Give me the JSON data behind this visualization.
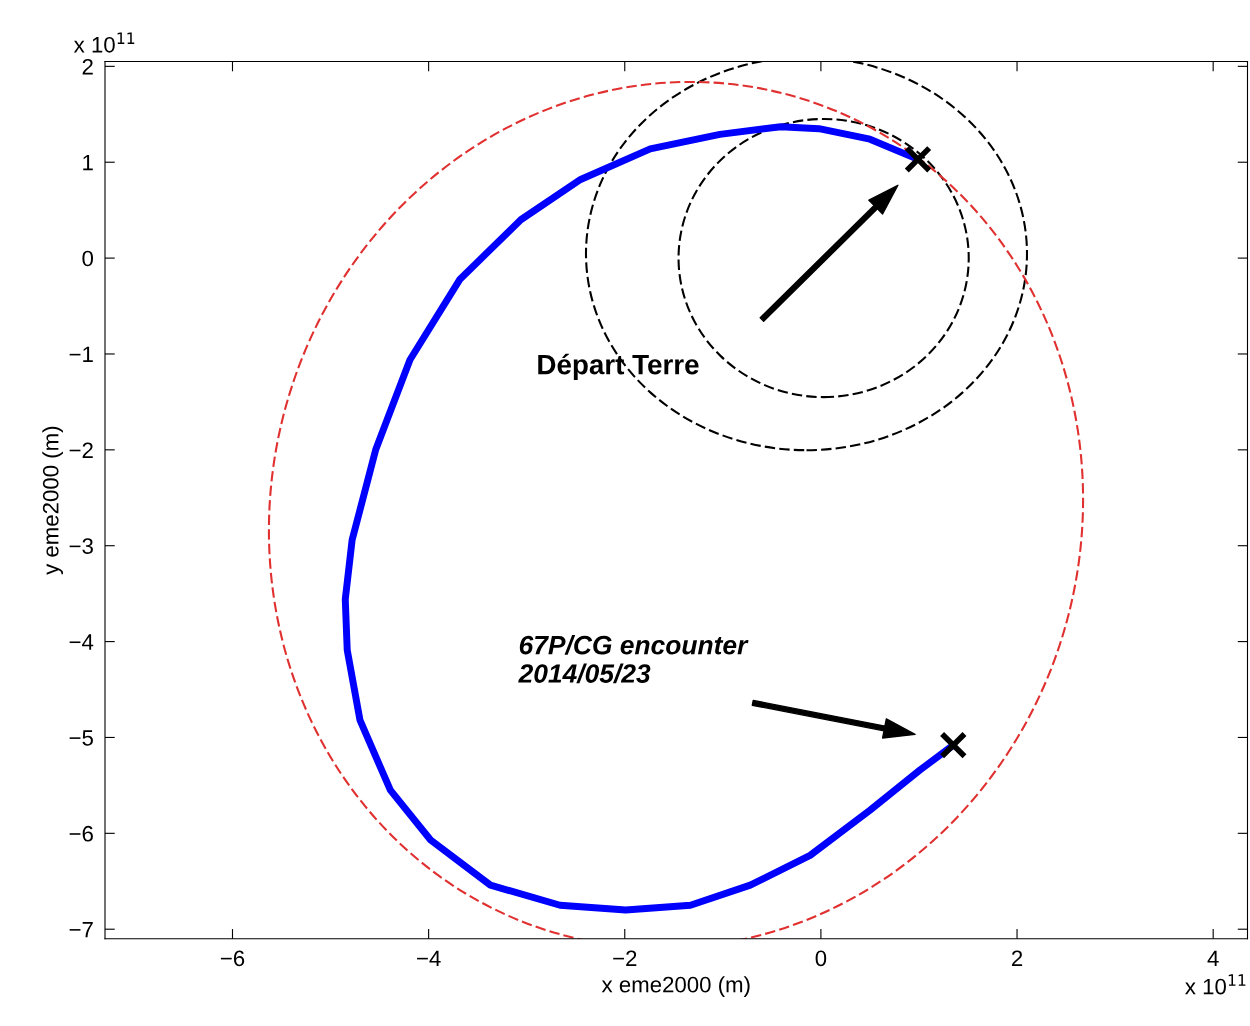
{
  "chart_data": {
    "type": "line",
    "xlabel": "x eme2000 (m)",
    "ylabel": "y eme2000 (m)",
    "xlim": [
      -7.3,
      4.35
    ],
    "ylim": [
      -7.1,
      2.05
    ],
    "xticks": [
      -6,
      -4,
      -2,
      0,
      2,
      4
    ],
    "yticks": [
      -7,
      -6,
      -5,
      -4,
      -3,
      -2,
      -1,
      0,
      1,
      2
    ],
    "grid": false,
    "series": [
      {
        "line_style": "solid",
        "color": "#0000ff",
        "x": [
          0.99,
          0.5,
          -0.02,
          -0.41,
          -1.03,
          -1.74,
          -2.45,
          -3.06,
          -3.68,
          -4.19,
          -4.54,
          -4.78,
          -4.85,
          -4.83,
          -4.7,
          -4.39,
          -3.98,
          -3.37,
          -2.66,
          -1.99,
          -1.33,
          -0.72,
          -0.11,
          0.5,
          1.01,
          1.35
        ],
        "values": [
          1.03,
          1.24,
          1.35,
          1.37,
          1.29,
          1.14,
          0.82,
          0.4,
          -0.22,
          -1.06,
          -2.0,
          -2.94,
          -3.56,
          -4.09,
          -4.82,
          -5.55,
          -6.07,
          -6.54,
          -6.75,
          -6.8,
          -6.75,
          -6.54,
          -6.23,
          -5.76,
          -5.34,
          -5.08
        ]
      },
      {
        "type": "scatter",
        "marker": "cross",
        "color": "#000000",
        "x": [
          0.99,
          1.35
        ],
        "values": [
          1.03,
          -5.08
        ]
      }
    ],
    "annotations": [
      "Départ Terre",
      "67P/CG encounter\n2014/05/23",
      "x 10$^{11}$",
      "x 10$^{11}$"
    ]
  }
}
